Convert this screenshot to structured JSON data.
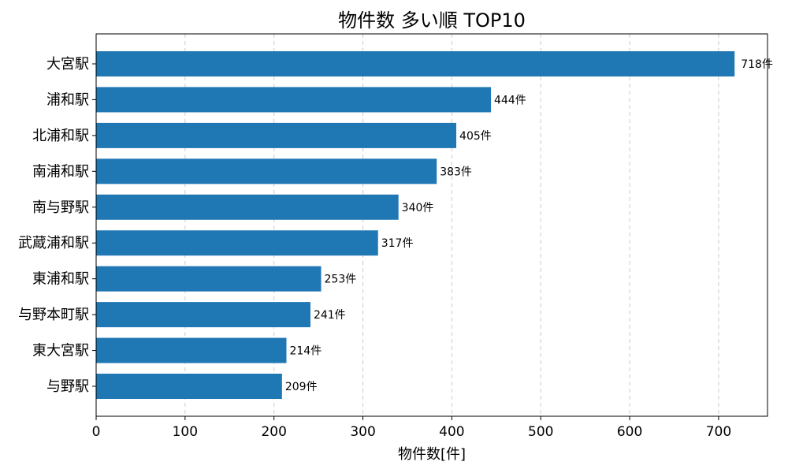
{
  "chart_data": {
    "type": "bar",
    "orientation": "horizontal",
    "title": "物件数 多い順 TOP10",
    "xlabel": "物件数[件]",
    "ylabel": "",
    "categories": [
      "大宮駅",
      "浦和駅",
      "北浦和駅",
      "南浦和駅",
      "南与野駅",
      "武蔵浦和駅",
      "東浦和駅",
      "与野本町駅",
      "東大宮駅",
      "与野駅"
    ],
    "values": [
      718,
      444,
      405,
      383,
      340,
      317,
      253,
      241,
      214,
      209
    ],
    "value_labels": [
      "718件",
      "444件",
      "405件",
      "383件",
      "340件",
      "317件",
      "253件",
      "241件",
      "214件",
      "209件"
    ],
    "xlim": [
      0,
      755
    ],
    "xticks": [
      0,
      100,
      200,
      300,
      400,
      500,
      600,
      700
    ],
    "grid": "x-dashed",
    "bar_color": "#1f77b4"
  }
}
